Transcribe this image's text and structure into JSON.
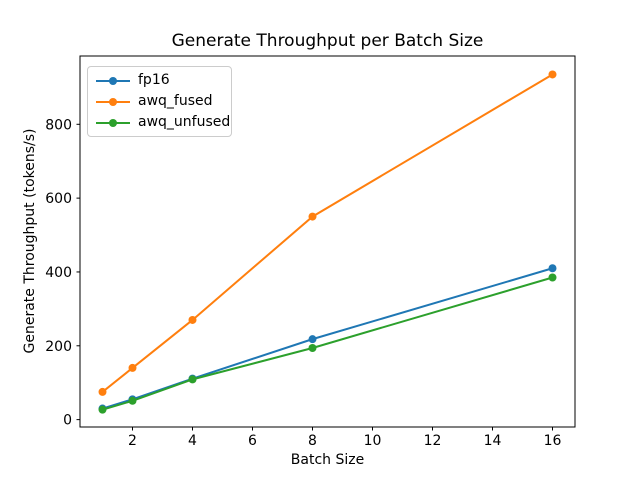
{
  "chart_data": {
    "type": "line",
    "title": "Generate Throughput per Batch Size",
    "xlabel": "Batch Size",
    "ylabel": "Generate Throughput (tokens/s)",
    "x": [
      1,
      2,
      4,
      8,
      16
    ],
    "series": [
      {
        "name": "fp16",
        "color": "#1f77b4",
        "values": [
          30,
          55,
          111,
          218,
          410
        ]
      },
      {
        "name": "awq_fused",
        "color": "#ff7f0e",
        "values": [
          75,
          140,
          270,
          550,
          935
        ]
      },
      {
        "name": "awq_unfused",
        "color": "#2ca02c",
        "values": [
          27,
          51,
          109,
          194,
          385
        ]
      }
    ],
    "xlim": [
      0.25,
      16.75
    ],
    "ylim": [
      -20,
      985
    ],
    "xticks": [
      2,
      4,
      6,
      8,
      10,
      12,
      14,
      16
    ],
    "yticks": [
      0,
      200,
      400,
      600,
      800
    ],
    "grid": false,
    "legend_position": "upper-left",
    "marker": "circle",
    "background_color": "#ffffff",
    "spine_color": "#000000"
  }
}
